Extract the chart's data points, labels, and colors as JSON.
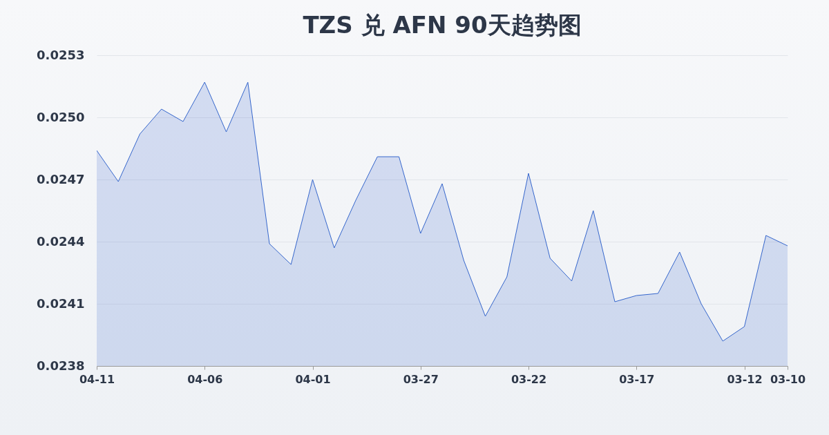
{
  "chart_data": {
    "type": "area",
    "title": "TZS 兑 AFN 90天趋势图",
    "x": [
      "--04-11",
      "--04-10",
      "--04-09",
      "--04-08",
      "--04-07",
      "--04-06",
      "--04-05",
      "--04-04",
      "--04-03",
      "--04-02",
      "--04-01",
      "--03-31",
      "--03-30",
      "--03-29",
      "--03-28",
      "--03-27",
      "--03-26",
      "--03-25",
      "--03-24",
      "--03-23",
      "--03-22",
      "--03-21",
      "--03-20",
      "--03-19",
      "--03-18",
      "--03-17",
      "--03-16",
      "--03-15",
      "--03-14",
      "--03-13",
      "--03-12",
      "--03-11",
      "--03-10"
    ],
    "series": [
      {
        "color": "#3566cc",
        "values": [
          0.02484,
          0.02469,
          0.02492,
          0.02504,
          0.02498,
          0.02517,
          0.02493,
          0.02517,
          0.02439,
          0.02429,
          0.0247,
          0.02437,
          0.0246,
          0.02481,
          0.02481,
          0.02444,
          0.02468,
          0.02431,
          0.02404,
          0.02423,
          0.02473,
          0.02432,
          0.02421,
          0.02455,
          0.02411,
          0.02414,
          0.02415,
          0.02435,
          0.0241,
          0.02392,
          0.02399,
          0.02443,
          0.02438
        ]
      }
    ],
    "xlim": [
      "--04-11",
      "--03-10"
    ],
    "xticks": [
      {
        "value": "--04-11",
        "label": "04-11"
      },
      {
        "value": "--04-06",
        "label": "04-06"
      },
      {
        "value": "--04-01",
        "label": "04-01"
      },
      {
        "value": "--03-27",
        "label": "03-27"
      },
      {
        "value": "--03-22",
        "label": "03-22"
      },
      {
        "value": "--03-17",
        "label": "03-17"
      },
      {
        "value": "--03-12",
        "label": "03-12"
      },
      {
        "value": "--03-10",
        "label": "03-10"
      }
    ],
    "ylim": [
      0.0238,
      0.0253
    ],
    "yticks": [
      0.0238,
      0.0241,
      0.0244,
      0.0247,
      {
        "value": 0.025,
        "label": "0.0250"
      },
      0.0253
    ],
    "grid": "y"
  }
}
